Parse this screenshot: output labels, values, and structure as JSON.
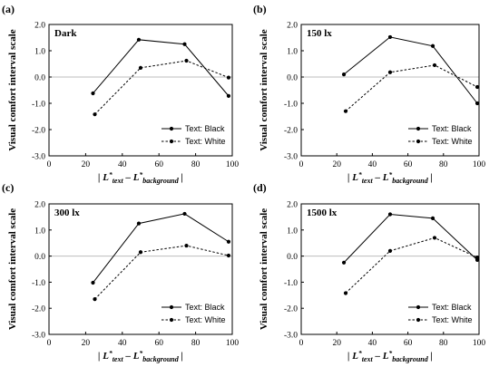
{
  "chart_data": [
    {
      "type": "line",
      "panel_label": "(a)",
      "title": "Dark",
      "ylabel": "Visual comfort interval scale",
      "xlabel": {
        "pre": "| L",
        "sup1": "*",
        "sub1": "text",
        "mid": " – L",
        "sup2": "*",
        "sub2": "background",
        "post": " |"
      },
      "xlim": [
        0,
        100
      ],
      "ylim": [
        -3.0,
        2.0
      ],
      "x_ticks": [
        "0",
        "20",
        "40",
        "60",
        "80",
        "100"
      ],
      "y_ticks": [
        "-3.0",
        "-2.0",
        "-1.0",
        "0.0",
        "1.0",
        "2.0"
      ],
      "zero_line": true,
      "legend_position": "bottom-right",
      "series": [
        {
          "name": "Text: Black",
          "style": "solid",
          "x": [
            24,
            49,
            74,
            98
          ],
          "y": [
            -0.62,
            1.42,
            1.25,
            -0.72
          ]
        },
        {
          "name": "Text: White",
          "style": "dashed",
          "x": [
            25,
            50,
            75,
            98
          ],
          "y": [
            -1.42,
            0.35,
            0.62,
            -0.02
          ]
        }
      ]
    },
    {
      "type": "line",
      "panel_label": "(b)",
      "title": "150 lx",
      "ylabel": "Visual comfort interval scale",
      "xlabel": {
        "pre": "| L",
        "sup1": "*",
        "sub1": "text",
        "mid": " – L",
        "sup2": "*",
        "sub2": "background",
        "post": " |"
      },
      "xlim": [
        0,
        100
      ],
      "ylim": [
        -3.0,
        2.0
      ],
      "x_ticks": [
        "0",
        "20",
        "40",
        "60",
        "80",
        "100"
      ],
      "y_ticks": [
        "-3.0",
        "-2.0",
        "-1.0",
        "0.0",
        "1.0",
        "2.0"
      ],
      "zero_line": true,
      "legend_position": "bottom-right",
      "series": [
        {
          "name": "Text: Black",
          "style": "solid",
          "x": [
            24,
            50,
            74,
            99
          ],
          "y": [
            0.1,
            1.52,
            1.18,
            -1.0
          ]
        },
        {
          "name": "Text: White",
          "style": "dashed",
          "x": [
            25,
            50,
            75,
            99
          ],
          "y": [
            -1.3,
            0.18,
            0.45,
            -0.38
          ]
        }
      ]
    },
    {
      "type": "line",
      "panel_label": "(c)",
      "title": "300 lx",
      "ylabel": "Visual comfort interval scale",
      "xlabel": {
        "pre": "| L",
        "sup1": "*",
        "sub1": "text",
        "mid": " – L",
        "sup2": "*",
        "sub2": "background",
        "post": " |"
      },
      "xlim": [
        0,
        100
      ],
      "ylim": [
        -3.0,
        2.0
      ],
      "x_ticks": [
        "0",
        "20",
        "40",
        "60",
        "80",
        "100"
      ],
      "y_ticks": [
        "-3.0",
        "-2.0",
        "-1.0",
        "0.0",
        "1.0",
        "2.0"
      ],
      "zero_line": true,
      "legend_position": "bottom-right",
      "series": [
        {
          "name": "Text: Black",
          "style": "solid",
          "x": [
            24,
            49,
            74,
            98
          ],
          "y": [
            -1.02,
            1.25,
            1.62,
            0.55
          ]
        },
        {
          "name": "Text: White",
          "style": "dashed",
          "x": [
            25,
            50,
            75,
            98
          ],
          "y": [
            -1.65,
            0.15,
            0.4,
            0.02
          ]
        }
      ]
    },
    {
      "type": "line",
      "panel_label": "(d)",
      "title": "1500 lx",
      "ylabel": "Visual comfort interval scale",
      "xlabel": {
        "pre": "| L",
        "sup1": "*",
        "sub1": "text",
        "mid": " – L",
        "sup2": "*",
        "sub2": "background",
        "post": " |"
      },
      "xlim": [
        0,
        100
      ],
      "ylim": [
        -3.0,
        2.0
      ],
      "x_ticks": [
        "0",
        "20",
        "40",
        "60",
        "80",
        "100"
      ],
      "y_ticks": [
        "-3.0",
        "-2.0",
        "-1.0",
        "0.0",
        "1.0",
        "2.0"
      ],
      "zero_line": true,
      "legend_position": "bottom-right",
      "series": [
        {
          "name": "Text: Black",
          "style": "solid",
          "x": [
            24,
            50,
            74,
            99
          ],
          "y": [
            -0.25,
            1.6,
            1.45,
            -0.15
          ]
        },
        {
          "name": "Text: White",
          "style": "dashed",
          "x": [
            25,
            50,
            75,
            99
          ],
          "y": [
            -1.42,
            0.2,
            0.7,
            -0.05
          ]
        }
      ]
    }
  ]
}
